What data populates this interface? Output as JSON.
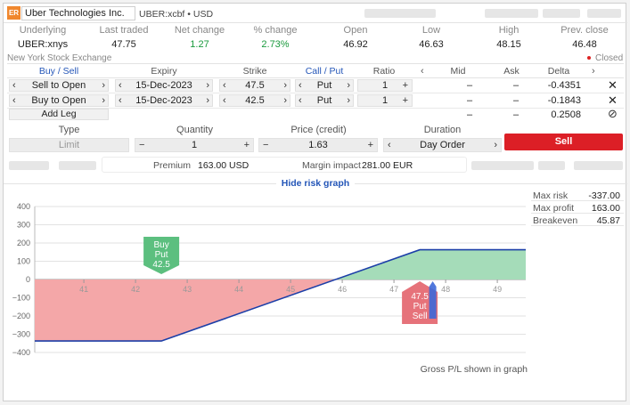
{
  "header": {
    "logo_text": "ER",
    "company": "Uber Technologies Inc.",
    "symbol_line": "UBER:xcbf • USD"
  },
  "quote": {
    "headers": [
      "Underlying",
      "Last traded",
      "Net change",
      "% change",
      "Open",
      "Low",
      "High",
      "Prev. close"
    ],
    "values": [
      "UBER:xnys",
      "47.75",
      "1.27",
      "2.73%",
      "46.92",
      "46.63",
      "48.15",
      "46.48"
    ],
    "exchange": "New York Stock Exchange",
    "status": "Closed"
  },
  "legs_header": {
    "buy_sell": "Buy / Sell",
    "expiry": "Expiry",
    "strike": "Strike",
    "call_put": "Call / Put",
    "ratio": "Ratio",
    "mid": "Mid",
    "ask": "Ask",
    "delta": "Delta"
  },
  "legs": [
    {
      "action": "Sell to Open",
      "expiry": "15-Dec-2023",
      "strike": "47.5",
      "type": "Put",
      "ratio": "1",
      "mid": "–",
      "ask": "–",
      "delta": "-0.4351"
    },
    {
      "action": "Buy to Open",
      "expiry": "15-Dec-2023",
      "strike": "42.5",
      "type": "Put",
      "ratio": "1",
      "mid": "–",
      "ask": "–",
      "delta": "-0.1843"
    }
  ],
  "add_leg": "Add Leg",
  "totals": {
    "mid": "–",
    "ask": "–",
    "delta": "0.2508"
  },
  "order": {
    "type_label": "Type",
    "type_value": "Limit",
    "qty_label": "Quantity",
    "qty_value": "1",
    "price_label": "Price (credit)",
    "price_value": "1.63",
    "duration_label": "Duration",
    "duration_value": "Day Order",
    "sell": "Sell"
  },
  "premium": {
    "label": "Premium",
    "value": "163.00 USD",
    "margin_label": "Margin impact",
    "margin_value": "281.00 EUR"
  },
  "hide_risk": "Hide risk graph",
  "risk": {
    "max_risk_label": "Max risk",
    "max_risk": "-337.00",
    "max_profit_label": "Max profit",
    "max_profit": "163.00",
    "breakeven_label": "Breakeven",
    "breakeven": "45.87"
  },
  "chart_data": {
    "type": "area",
    "yticks": [
      "400",
      "300",
      "200",
      "100",
      "0",
      "−100",
      "−200",
      "−300",
      "−400"
    ],
    "xticks": [
      "41",
      "42",
      "43",
      "44",
      "45",
      "46",
      "47",
      "48",
      "49"
    ],
    "ylim": [
      -400,
      400
    ],
    "xlim": [
      40.05,
      49.55
    ],
    "payoff": [
      [
        40.05,
        -337
      ],
      [
        42.5,
        -337
      ],
      [
        47.5,
        163
      ],
      [
        49.55,
        163
      ]
    ],
    "markers": [
      {
        "label": [
          "Buy",
          "Put",
          "42.5"
        ],
        "x": 42.5
      },
      {
        "label": [
          "47.5",
          "Put",
          "Sell"
        ],
        "x": 47.5
      }
    ],
    "footnote": "Gross P/L shown in graph"
  }
}
